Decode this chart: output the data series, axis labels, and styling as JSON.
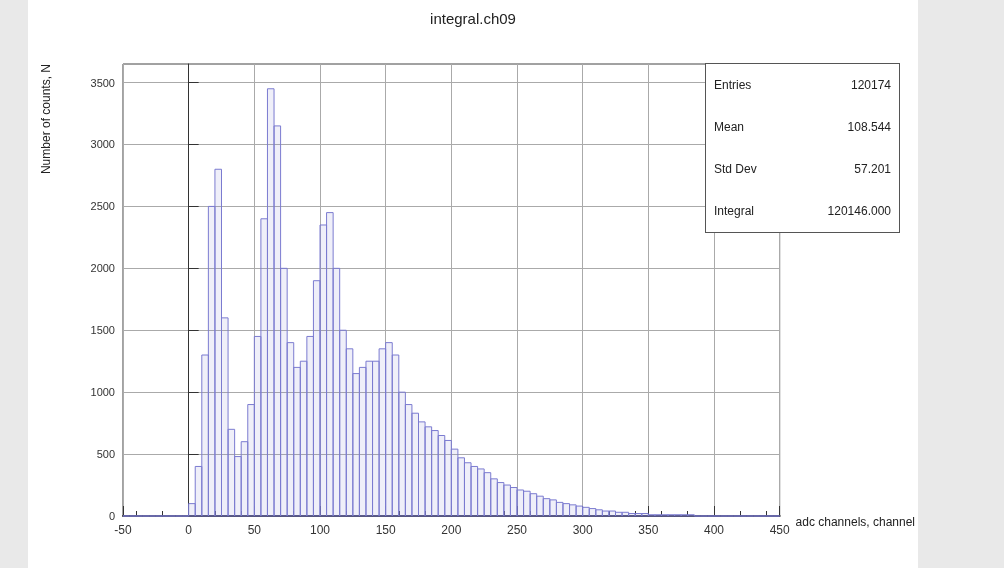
{
  "chart_data": {
    "type": "histogram",
    "title": "integral.ch09",
    "xlabel": "adc channels, channel",
    "ylabel": "Number of counts, N",
    "bins": [
      -50,
      -45,
      -40,
      -35,
      -30,
      -25,
      -20,
      -15,
      -10,
      -5,
      0,
      5,
      10,
      15,
      20,
      25,
      30,
      35,
      40,
      45,
      50,
      55,
      60,
      65,
      70,
      75,
      80,
      85,
      90,
      95,
      100,
      105,
      110,
      115,
      120,
      125,
      130,
      135,
      140,
      145,
      150,
      155,
      160,
      165,
      170,
      175,
      180,
      185,
      190,
      195,
      200,
      205,
      210,
      215,
      220,
      225,
      230,
      235,
      240,
      245,
      250,
      255,
      260,
      265,
      270,
      275,
      280,
      285,
      290,
      295,
      300,
      305,
      310,
      315,
      320,
      325,
      330,
      335,
      340,
      345,
      350,
      355,
      360,
      365,
      370,
      375,
      380,
      385,
      390,
      395,
      400,
      405,
      410,
      415,
      420,
      425,
      430,
      435,
      440,
      445,
      450
    ],
    "values": [
      0,
      0,
      0,
      0,
      0,
      0,
      0,
      0,
      0,
      0,
      100,
      400,
      1300,
      2500,
      2800,
      1600,
      700,
      480,
      600,
      900,
      1450,
      2400,
      3450,
      3150,
      2000,
      1400,
      1200,
      1250,
      1450,
      1900,
      2350,
      2450,
      2000,
      1500,
      1350,
      1150,
      1200,
      1250,
      1250,
      1350,
      1400,
      1300,
      1000,
      900,
      830,
      760,
      720,
      690,
      650,
      610,
      540,
      470,
      430,
      400,
      380,
      350,
      300,
      270,
      250,
      230,
      210,
      200,
      180,
      160,
      140,
      130,
      110,
      100,
      90,
      80,
      70,
      60,
      50,
      40,
      40,
      30,
      30,
      20,
      20,
      20,
      10,
      10,
      10,
      10,
      10,
      10,
      10,
      0,
      0,
      0,
      0,
      0,
      0,
      0,
      0,
      0,
      0,
      0,
      0,
      0
    ],
    "color": "#7b7bd0",
    "xlim": [
      -50,
      450
    ],
    "xticks": [
      -50,
      0,
      50,
      100,
      150,
      200,
      250,
      300,
      350,
      400,
      450
    ],
    "ylim": [
      0,
      3650
    ],
    "yticks": [
      0,
      500,
      1000,
      1500,
      2000,
      2500,
      3000,
      3500
    ],
    "grid": true,
    "legend": false,
    "annotations": [
      "Entries",
      "120174",
      "Mean",
      "108.544",
      "Std Dev",
      "57.201",
      "Integral",
      "120146.000"
    ]
  }
}
